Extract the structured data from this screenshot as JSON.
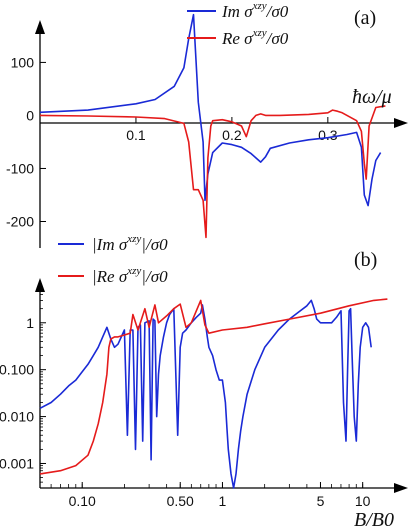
{
  "chart_data": [
    {
      "panel_label": "(a)",
      "type": "line",
      "xlabel": "ħω/μ",
      "xlim": [
        0.0,
        0.37
      ],
      "ylim": [
        -250,
        180
      ],
      "xticks": [
        0.1,
        0.2,
        0.3
      ],
      "xtick_labels": [
        "0.1",
        "0.2",
        "0.3"
      ],
      "yticks": [
        -200,
        -100,
        0,
        100
      ],
      "ytick_labels": [
        "-200",
        "-100",
        "0",
        "100"
      ],
      "legend": "top-right",
      "series": [
        {
          "name": "Im σxzy/σ0",
          "legend_main": "Im σ",
          "legend_sup": "xzy",
          "legend_tail": "/σ0",
          "color": "#1a2ad6",
          "x": [
            0.0,
            0.05,
            0.1,
            0.12,
            0.14,
            0.15,
            0.155,
            0.16,
            0.165,
            0.17,
            0.172,
            0.175,
            0.18,
            0.19,
            0.2,
            0.21,
            0.22,
            0.225,
            0.23,
            0.235,
            0.24,
            0.26,
            0.28,
            0.3,
            0.32,
            0.33,
            0.335,
            0.338,
            0.342,
            0.346,
            0.35,
            0.355
          ],
          "y": [
            6,
            10,
            22,
            30,
            55,
            90,
            145,
            190,
            25,
            -50,
            -160,
            -110,
            -70,
            -52,
            -55,
            -60,
            -72,
            -80,
            -88,
            -78,
            -62,
            -52,
            -46,
            -42,
            -36,
            -32,
            -60,
            -150,
            -170,
            -120,
            -85,
            -70
          ]
        },
        {
          "name": "Re σxzy/σ0",
          "legend_main": "Re σ",
          "legend_sup": "xzy",
          "legend_tail": "/σ0",
          "color": "#e51b1b",
          "x": [
            0.0,
            0.05,
            0.1,
            0.13,
            0.15,
            0.155,
            0.16,
            0.165,
            0.17,
            0.173,
            0.175,
            0.178,
            0.18,
            0.19,
            0.2,
            0.21,
            0.215,
            0.22,
            0.225,
            0.23,
            0.235,
            0.25,
            0.28,
            0.3,
            0.305,
            0.31,
            0.315,
            0.32,
            0.33,
            0.335,
            0.338,
            0.34,
            0.343,
            0.35,
            0.36
          ],
          "y": [
            0,
            -1,
            -3,
            -6,
            -15,
            -50,
            -140,
            -140,
            -160,
            -230,
            -80,
            -20,
            -10,
            -8,
            -12,
            -20,
            -40,
            -10,
            0,
            3,
            0,
            0,
            2,
            5,
            10,
            8,
            5,
            0,
            -10,
            -30,
            -90,
            -120,
            -20,
            15,
            18
          ]
        }
      ]
    },
    {
      "panel_label": "(b)",
      "type": "line",
      "xlabel": "B/B0",
      "xscale": "log",
      "yscale": "log",
      "xlim": [
        0.05,
        17
      ],
      "ylim": [
        0.0003,
        5
      ],
      "xticks": [
        0.1,
        0.5,
        1,
        5,
        10
      ],
      "xtick_labels": [
        "0.10",
        "0.50",
        "1",
        "5",
        "10"
      ],
      "yticks": [
        0.001,
        0.01,
        0.1,
        1
      ],
      "ytick_labels": [
        "0.001",
        "0.010",
        "0.100",
        "1"
      ],
      "legend": "top-left",
      "series": [
        {
          "name": "|Im σxzy|/σ0",
          "legend_main": "|Im σ",
          "legend_sup": "xzy",
          "legend_tail": "|/σ0",
          "color": "#1a2ad6",
          "x": [
            0.05,
            0.06,
            0.07,
            0.08,
            0.09,
            0.1,
            0.11,
            0.12,
            0.13,
            0.14,
            0.15,
            0.16,
            0.17,
            0.18,
            0.2,
            0.21,
            0.22,
            0.23,
            0.24,
            0.25,
            0.26,
            0.27,
            0.28,
            0.3,
            0.31,
            0.32,
            0.33,
            0.34,
            0.35,
            0.36,
            0.38,
            0.4,
            0.42,
            0.45,
            0.48,
            0.5,
            0.52,
            0.55,
            0.6,
            0.65,
            0.7,
            0.72,
            0.75,
            0.78,
            0.8,
            0.85,
            0.9,
            0.95,
            1.0,
            1.05,
            1.08,
            1.1,
            1.15,
            1.2,
            1.25,
            1.3,
            1.35,
            1.4,
            1.5,
            1.7,
            2.0,
            2.5,
            3.0,
            3.5,
            4.0,
            4.3,
            4.5,
            4.7,
            5.0,
            5.5,
            6.0,
            6.5,
            7.0,
            7.3,
            7.6,
            7.8,
            8.0,
            8.2,
            8.4,
            8.7,
            9.0,
            9.3,
            9.6,
            10.0,
            10.5,
            11.0,
            11.5,
            12.0,
            13.0
          ],
          "y": [
            0.015,
            0.02,
            0.03,
            0.045,
            0.06,
            0.09,
            0.13,
            0.2,
            0.3,
            0.5,
            0.8,
            0.45,
            0.3,
            0.35,
            0.7,
            0.004,
            0.7,
            0.7,
            0.002,
            0.8,
            0.9,
            0.003,
            1.0,
            1.1,
            0.0012,
            1.2,
            1.1,
            0.01,
            0.08,
            0.2,
            0.5,
            1.0,
            1.5,
            2.0,
            0.004,
            0.3,
            0.6,
            0.7,
            1.0,
            1.3,
            1.6,
            2.4,
            1.2,
            0.5,
            0.3,
            0.2,
            0.1,
            0.06,
            0.06,
            0.02,
            0.005,
            0.002,
            0.0006,
            0.0003,
            0.0006,
            0.002,
            0.005,
            0.01,
            0.03,
            0.1,
            0.3,
            0.7,
            1.2,
            1.7,
            2.3,
            3.0,
            2.0,
            1.2,
            1.0,
            1.0,
            1.0,
            1.3,
            1.8,
            0.02,
            0.003,
            0.1,
            1.8,
            2.0,
            0.2,
            0.01,
            0.003,
            0.05,
            0.3,
            0.8,
            1.0,
            0.8,
            0.3,
            0.0,
            0.0
          ]
        },
        {
          "name": "|Re σxzy|/σ0",
          "legend_main": "|Re σ",
          "legend_sup": "xzy",
          "legend_tail": "|/σ0",
          "color": "#e51b1b",
          "x": [
            0.05,
            0.07,
            0.09,
            0.11,
            0.12,
            0.13,
            0.14,
            0.15,
            0.155,
            0.16,
            0.17,
            0.18,
            0.2,
            0.22,
            0.23,
            0.25,
            0.28,
            0.3,
            0.33,
            0.35,
            0.4,
            0.45,
            0.5,
            0.55,
            0.6,
            0.7,
            0.75,
            0.8,
            1.0,
            1.5,
            2.0,
            3.0,
            5.0,
            8.0,
            12.0,
            15.0
          ],
          "y": [
            0.0006,
            0.0007,
            0.0009,
            0.0015,
            0.003,
            0.007,
            0.02,
            0.08,
            0.3,
            0.45,
            0.5,
            0.5,
            0.55,
            0.6,
            1.5,
            0.7,
            2.0,
            0.8,
            2.4,
            1.0,
            1.4,
            2.0,
            2.5,
            0.8,
            1.0,
            3.0,
            0.9,
            0.6,
            0.7,
            0.8,
            0.95,
            1.2,
            1.6,
            2.3,
            3.0,
            3.2
          ]
        }
      ]
    }
  ]
}
